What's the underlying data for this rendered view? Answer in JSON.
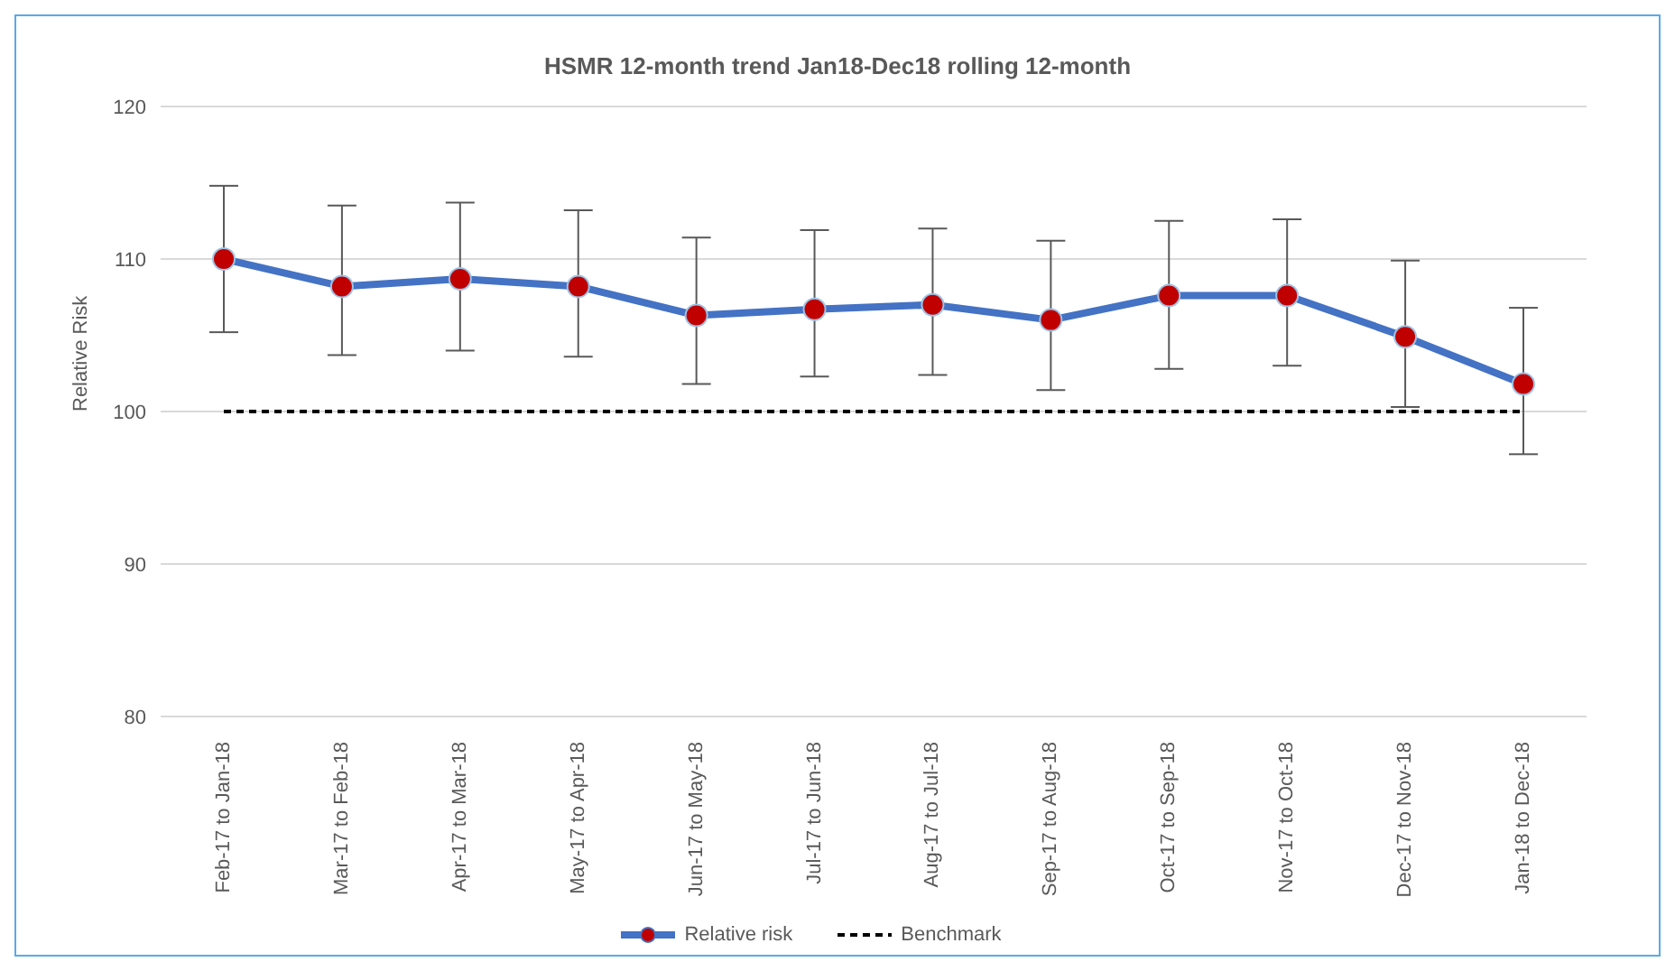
{
  "chart_data": {
    "type": "line",
    "title": "HSMR 12-month trend Jan18-Dec18 rolling 12-month",
    "ylabel": "Relative Risk",
    "categories": [
      "Feb-17 to Jan-18",
      "Mar-17 to Feb-18",
      "Apr-17 to Mar-18",
      "May-17 to Apr-18",
      "Jun-17 to May-18",
      "Jul-17 to Jun-18",
      "Aug-17 to Jul-18",
      "Sep-17 to Aug-18",
      "Oct-17 to Sep-18",
      "Nov-17 to Oct-18",
      "Dec-17 to Nov-18",
      "Jan-18 to Dec-18"
    ],
    "series": [
      {
        "name": "Relative risk",
        "color": "#4472c4",
        "marker": "circle",
        "line_style": "solid",
        "values": [
          110,
          108.2,
          108.7,
          108.2,
          106.3,
          106.7,
          107,
          106,
          107.6,
          107.6,
          104.9,
          101.8
        ],
        "errors": [
          [
            105.2,
            114.8
          ],
          [
            103.7,
            113.5
          ],
          [
            104,
            113.7
          ],
          [
            103.6,
            113.2
          ],
          [
            101.8,
            111.4
          ],
          [
            102.3,
            111.9
          ],
          [
            102.4,
            112
          ],
          [
            101.4,
            111.2
          ],
          [
            102.8,
            112.5
          ],
          [
            103,
            112.6
          ],
          [
            100.3,
            109.9
          ],
          [
            97.2,
            106.8
          ]
        ]
      },
      {
        "name": "Benchmark",
        "color": "#000000",
        "marker": "none",
        "line_style": "dashed",
        "values": [
          100,
          100,
          100,
          100,
          100,
          100,
          100,
          100,
          100,
          100,
          100,
          100
        ]
      }
    ],
    "ylim": [
      80,
      120
    ],
    "yticks": [
      80,
      90,
      100,
      110,
      120
    ],
    "grid": "y",
    "legend": "bottom"
  }
}
